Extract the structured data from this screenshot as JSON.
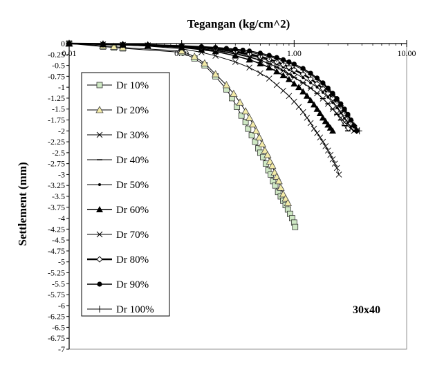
{
  "chart_data": {
    "type": "line",
    "title": "Tegangan (kg/cm^2)",
    "xlabel": "Tegangan (kg/cm^2)",
    "ylabel": "Settlement (mm)",
    "x_scale": "log",
    "xlim": [
      0.01,
      10
    ],
    "ylim": [
      -7,
      0
    ],
    "x_ticks": [
      "0.01",
      "0.10",
      "1.00",
      "10.00"
    ],
    "y_ticks": [
      "0",
      "-0.25",
      "-0.5",
      "-0.75",
      "-1",
      "-1.25",
      "-1.5",
      "-1.75",
      "-2",
      "-2.25",
      "-2.5",
      "-2.75",
      "-3",
      "-3.25",
      "-3.5",
      "-3.75",
      "-4",
      "-4.25",
      "-4.5",
      "-4.75",
      "-5",
      "-5.25",
      "-5.5",
      "-5.75",
      "-6",
      "-6.25",
      "-6.5",
      "-6.75",
      "-7"
    ],
    "annotation": "30x40",
    "grid": false,
    "legend_position": "left",
    "series": [
      {
        "name": "Dr 10%",
        "marker": "square-open",
        "x": [
          0.01,
          0.02,
          0.025,
          0.03,
          0.1,
          0.13,
          0.16,
          0.2,
          0.25,
          0.28,
          0.31,
          0.34,
          0.37,
          0.39,
          0.42,
          0.45,
          0.48,
          0.5,
          0.53,
          0.56,
          0.59,
          0.62,
          0.65,
          0.68,
          0.72,
          0.76,
          0.8,
          0.84,
          0.88,
          0.92,
          0.96,
          1.0,
          1.02
        ],
        "y": [
          0,
          -0.07,
          -0.09,
          -0.11,
          -0.2,
          -0.34,
          -0.5,
          -0.75,
          -1.05,
          -1.25,
          -1.45,
          -1.65,
          -1.8,
          -1.95,
          -2.1,
          -2.25,
          -2.4,
          -2.5,
          -2.6,
          -2.75,
          -2.9,
          -3.0,
          -3.15,
          -3.25,
          -3.4,
          -3.5,
          -3.6,
          -3.7,
          -3.8,
          -3.9,
          -4.0,
          -4.1,
          -4.2
        ]
      },
      {
        "name": "Dr 20%",
        "marker": "triangle-open",
        "x": [
          0.01,
          0.02,
          0.025,
          0.03,
          0.1,
          0.13,
          0.16,
          0.2,
          0.25,
          0.29,
          0.33,
          0.37,
          0.4,
          0.43,
          0.46,
          0.49,
          0.52,
          0.55,
          0.58,
          0.61,
          0.64,
          0.67,
          0.7,
          0.73,
          0.76,
          0.8,
          0.84,
          0.88
        ],
        "y": [
          0,
          -0.05,
          -0.07,
          -0.09,
          -0.17,
          -0.3,
          -0.45,
          -0.7,
          -0.95,
          -1.15,
          -1.35,
          -1.55,
          -1.7,
          -1.85,
          -2.0,
          -2.15,
          -2.3,
          -2.45,
          -2.55,
          -2.7,
          -2.8,
          -2.95,
          -3.05,
          -3.15,
          -3.3,
          -3.45,
          -3.55,
          -3.65
        ]
      },
      {
        "name": "Dr 30%",
        "marker": "x",
        "x": [
          0.01,
          0.02,
          0.03,
          0.05,
          0.1,
          0.15,
          0.2,
          0.3,
          0.4,
          0.5,
          0.6,
          0.7,
          0.8,
          0.9,
          1.0,
          1.1,
          1.2,
          1.3,
          1.4,
          1.5,
          1.6,
          1.7,
          1.8,
          1.9,
          2.0,
          2.1,
          2.2,
          2.3,
          2.4,
          2.5
        ],
        "y": [
          0,
          -0.02,
          -0.03,
          -0.06,
          -0.12,
          -0.2,
          -0.28,
          -0.42,
          -0.55,
          -0.68,
          -0.8,
          -0.95,
          -1.08,
          -1.2,
          -1.33,
          -1.45,
          -1.57,
          -1.7,
          -1.82,
          -1.95,
          -2.05,
          -2.15,
          -2.25,
          -2.35,
          -2.45,
          -2.55,
          -2.65,
          -2.75,
          -2.85,
          -3.0
        ]
      },
      {
        "name": "Dr 40%",
        "marker": "dash",
        "x": [
          0.01,
          0.02,
          0.03,
          0.05,
          0.1,
          0.15,
          0.2,
          0.3,
          0.4,
          0.5,
          0.6,
          0.7,
          0.8,
          0.9,
          1.0,
          1.2,
          1.4,
          1.6,
          1.8,
          2.0,
          2.2,
          2.4,
          2.6,
          2.8,
          3.0
        ],
        "y": [
          0,
          -0.02,
          -0.03,
          -0.05,
          -0.08,
          -0.12,
          -0.15,
          -0.22,
          -0.3,
          -0.38,
          -0.46,
          -0.54,
          -0.62,
          -0.7,
          -0.78,
          -0.9,
          -1.02,
          -1.14,
          -1.26,
          -1.38,
          -1.5,
          -1.62,
          -1.75,
          -1.88,
          -2.0
        ]
      },
      {
        "name": "Dr 50%",
        "marker": "dot-small",
        "x": [
          0.01,
          0.02,
          0.03,
          0.05,
          0.1,
          0.15,
          0.2,
          0.3,
          0.4,
          0.5,
          0.6,
          0.7,
          0.8,
          0.9,
          1.0,
          1.2,
          1.4,
          1.6,
          1.8,
          2.0,
          2.2,
          2.4,
          2.6,
          2.8,
          3.0,
          3.2,
          3.4
        ],
        "y": [
          0,
          -0.02,
          -0.03,
          -0.04,
          -0.07,
          -0.1,
          -0.13,
          -0.2,
          -0.27,
          -0.33,
          -0.4,
          -0.47,
          -0.54,
          -0.6,
          -0.67,
          -0.78,
          -0.9,
          -1.0,
          -1.12,
          -1.23,
          -1.35,
          -1.47,
          -1.59,
          -1.71,
          -1.82,
          -1.92,
          -2.0
        ]
      },
      {
        "name": "Dr 60%",
        "marker": "triangle-filled",
        "x": [
          0.01,
          0.02,
          0.03,
          0.05,
          0.1,
          0.15,
          0.2,
          0.3,
          0.4,
          0.5,
          0.6,
          0.7,
          0.8,
          0.9,
          1.0,
          1.1,
          1.2,
          1.3,
          1.4,
          1.5,
          1.6,
          1.7,
          1.8,
          1.9,
          2.0,
          2.1,
          2.2
        ],
        "y": [
          0,
          -0.02,
          -0.03,
          -0.05,
          -0.09,
          -0.14,
          -0.18,
          -0.28,
          -0.37,
          -0.46,
          -0.55,
          -0.64,
          -0.73,
          -0.82,
          -0.92,
          -1.0,
          -1.1,
          -1.2,
          -1.3,
          -1.4,
          -1.5,
          -1.6,
          -1.7,
          -1.78,
          -1.86,
          -1.93,
          -2.0
        ]
      },
      {
        "name": "Dr 70%",
        "marker": "x",
        "x": [
          0.01,
          0.02,
          0.03,
          0.05,
          0.1,
          0.15,
          0.2,
          0.3,
          0.4,
          0.5,
          0.6,
          0.7,
          0.8,
          0.9,
          1.0,
          1.2,
          1.4,
          1.6,
          1.8,
          2.0,
          2.2,
          2.4,
          2.6,
          2.8,
          3.0,
          3.2,
          3.4
        ],
        "y": [
          0,
          -0.02,
          -0.03,
          -0.04,
          -0.08,
          -0.12,
          -0.16,
          -0.24,
          -0.31,
          -0.39,
          -0.46,
          -0.54,
          -0.62,
          -0.7,
          -0.77,
          -0.9,
          -1.02,
          -1.14,
          -1.26,
          -1.38,
          -1.5,
          -1.6,
          -1.7,
          -1.8,
          -1.88,
          -1.95,
          -2.0
        ]
      },
      {
        "name": "Dr 80%",
        "marker": "diamond-open",
        "x": [
          0.01,
          0.02,
          0.03,
          0.05,
          0.1,
          0.15,
          0.2,
          0.3,
          0.4,
          0.5,
          0.6,
          0.7,
          0.8,
          0.9,
          1.0,
          1.2,
          1.4,
          1.6,
          1.8,
          2.0,
          2.2,
          2.4,
          2.6,
          2.8,
          3.0,
          3.2,
          3.4,
          3.6
        ],
        "y": [
          0,
          -0.01,
          -0.02,
          -0.03,
          -0.06,
          -0.09,
          -0.12,
          -0.18,
          -0.24,
          -0.3,
          -0.36,
          -0.42,
          -0.48,
          -0.54,
          -0.6,
          -0.7,
          -0.81,
          -0.92,
          -1.03,
          -1.14,
          -1.25,
          -1.37,
          -1.49,
          -1.6,
          -1.72,
          -1.83,
          -1.93,
          -2.0
        ]
      },
      {
        "name": "Dr 90%",
        "marker": "circle-filled",
        "x": [
          0.01,
          0.02,
          0.03,
          0.05,
          0.1,
          0.15,
          0.2,
          0.25,
          0.3,
          0.35,
          0.4,
          0.5,
          0.6,
          0.7,
          0.8,
          0.9,
          1.0,
          1.2,
          1.4,
          1.6,
          1.8,
          2.0,
          2.2,
          2.4,
          2.6,
          2.8,
          3.0,
          3.2,
          3.4,
          3.6
        ],
        "y": [
          0,
          -0.01,
          -0.02,
          -0.03,
          -0.05,
          -0.07,
          -0.09,
          -0.11,
          -0.13,
          -0.15,
          -0.17,
          -0.22,
          -0.27,
          -0.32,
          -0.37,
          -0.42,
          -0.47,
          -0.57,
          -0.68,
          -0.79,
          -0.9,
          -1.02,
          -1.14,
          -1.26,
          -1.38,
          -1.5,
          -1.62,
          -1.75,
          -1.88,
          -2.0
        ]
      },
      {
        "name": "Dr 100%",
        "marker": "plus",
        "x": [
          0.01,
          0.02,
          0.03,
          0.05,
          0.1,
          0.15,
          0.2,
          0.3,
          0.4,
          0.5,
          0.6,
          0.7,
          0.8,
          0.9,
          1.0,
          1.2,
          1.4,
          1.6,
          1.8,
          2.0,
          2.2,
          2.4,
          2.6,
          2.8,
          3.0,
          3.2,
          3.4,
          3.6,
          3.8
        ],
        "y": [
          0,
          -0.01,
          -0.02,
          -0.03,
          -0.05,
          -0.08,
          -0.1,
          -0.15,
          -0.2,
          -0.25,
          -0.3,
          -0.35,
          -0.4,
          -0.45,
          -0.5,
          -0.6,
          -0.71,
          -0.82,
          -0.93,
          -1.05,
          -1.17,
          -1.3,
          -1.42,
          -1.54,
          -1.66,
          -1.77,
          -1.87,
          -1.95,
          -2.0
        ]
      }
    ]
  }
}
